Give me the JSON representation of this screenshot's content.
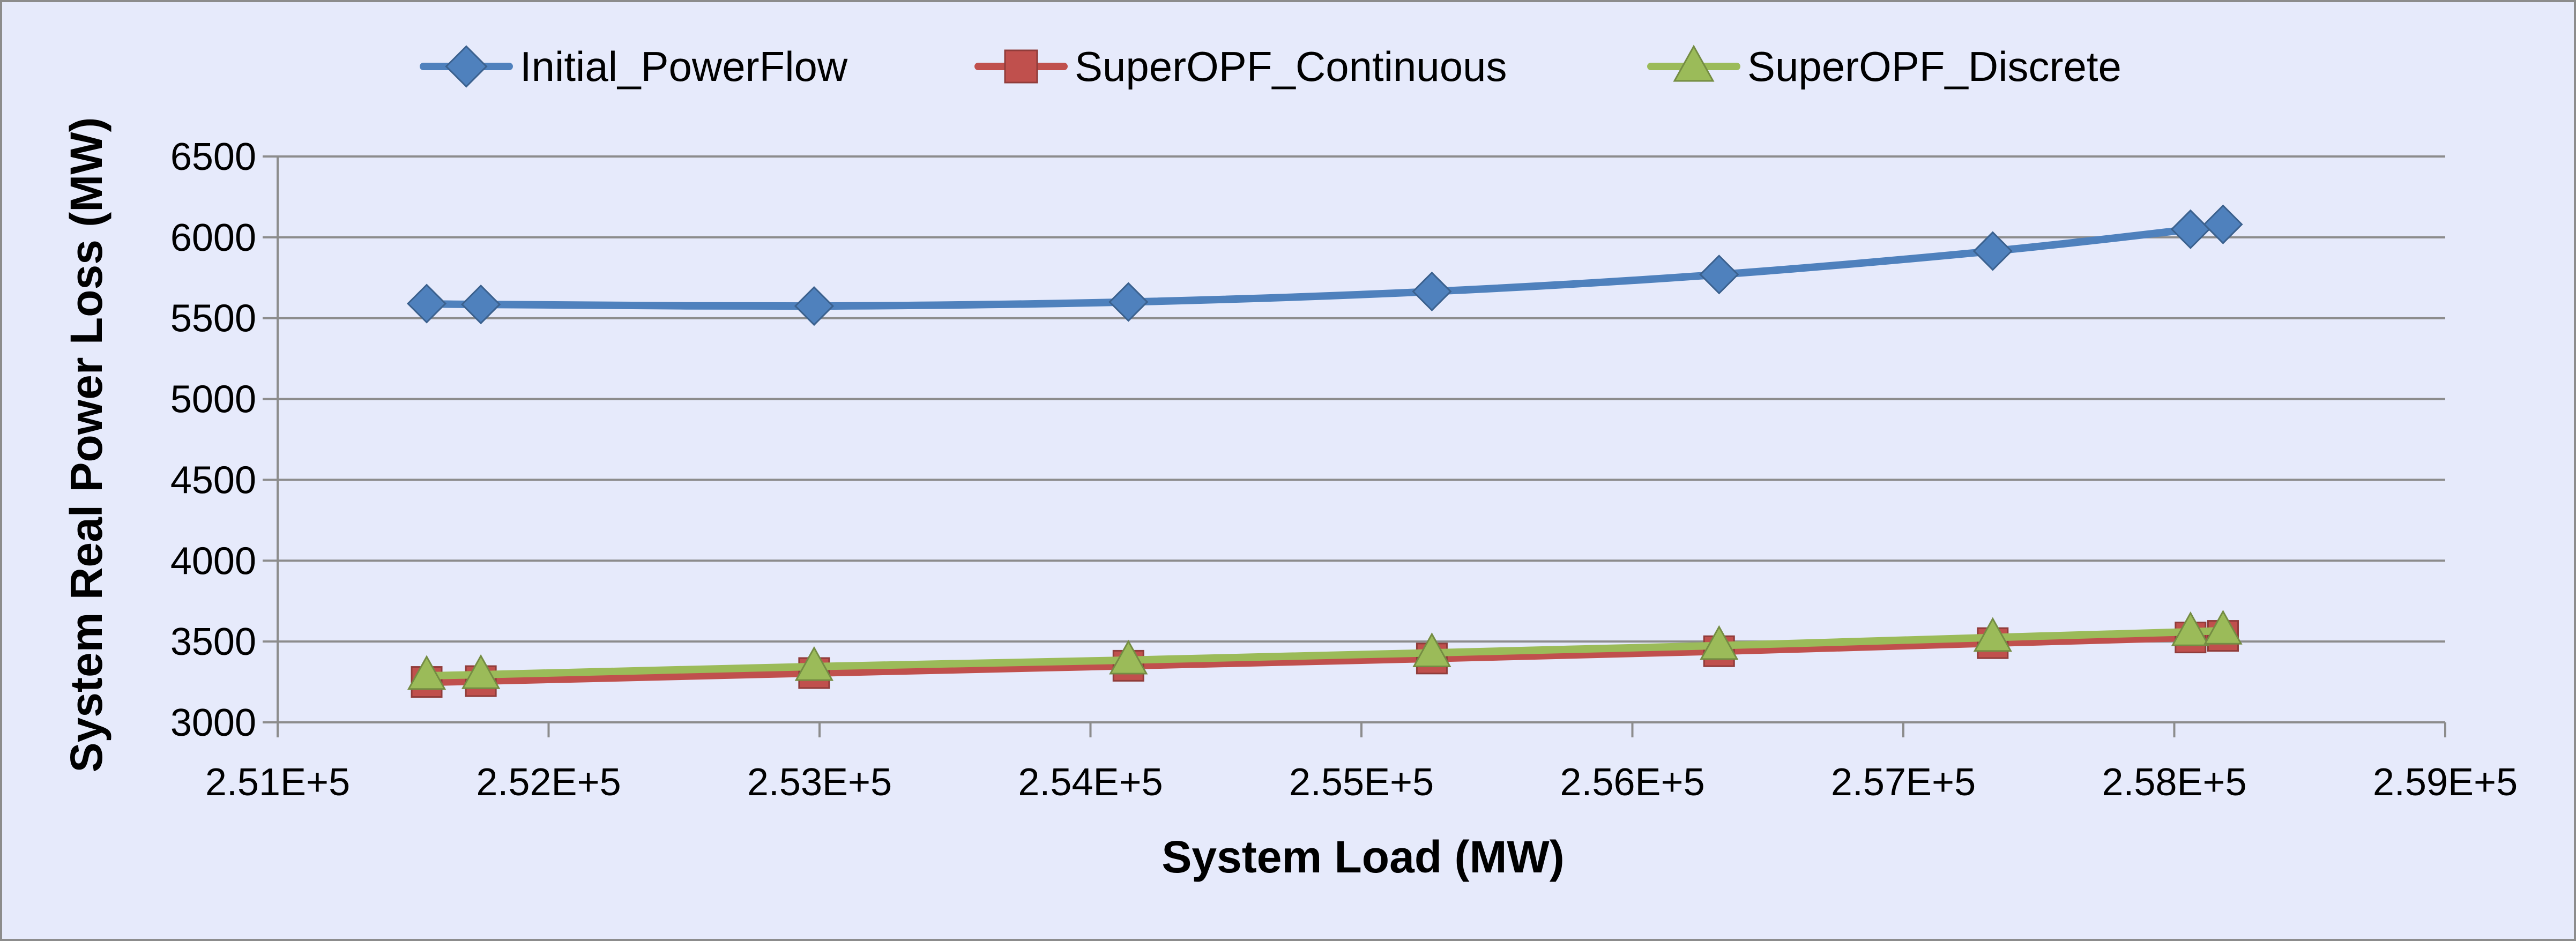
{
  "chart_data": {
    "type": "line",
    "title": "",
    "xlabel": "System Load (MW)",
    "ylabel": "System Real Power Loss (MW)",
    "xlim": [
      251000,
      259000
    ],
    "ylim": [
      3000,
      6500
    ],
    "x_ticks": [
      {
        "value": 251000,
        "label": "2.51E+5"
      },
      {
        "value": 252000,
        "label": "2.52E+5"
      },
      {
        "value": 253000,
        "label": "2.53E+5"
      },
      {
        "value": 254000,
        "label": "2.54E+5"
      },
      {
        "value": 255000,
        "label": "2.55E+5"
      },
      {
        "value": 256000,
        "label": "2.56E+5"
      },
      {
        "value": 257000,
        "label": "2.57E+5"
      },
      {
        "value": 258000,
        "label": "2.58E+5"
      },
      {
        "value": 259000,
        "label": "2.59E+5"
      }
    ],
    "y_ticks": [
      {
        "value": 3000,
        "label": "3000"
      },
      {
        "value": 3500,
        "label": "3500"
      },
      {
        "value": 4000,
        "label": "4000"
      },
      {
        "value": 4500,
        "label": "4500"
      },
      {
        "value": 5000,
        "label": "5000"
      },
      {
        "value": 5500,
        "label": "5500"
      },
      {
        "value": 6000,
        "label": "6000"
      },
      {
        "value": 6500,
        "label": "6500"
      }
    ],
    "grid": {
      "horizontal": true,
      "vertical": false
    },
    "legend": "top",
    "x": [
      251550,
      251750,
      252980,
      254140,
      255260,
      256320,
      257330,
      258060,
      258180
    ],
    "series": [
      {
        "name": "Initial_PowerFlow",
        "marker": "diamond",
        "color": "#4f81bd",
        "values": [
          5590,
          5585,
          5575,
          5600,
          5665,
          5770,
          5915,
          6050,
          6080
        ]
      },
      {
        "name": "SuperOPF_Continuous",
        "marker": "square",
        "color": "#c0504d",
        "values": [
          3250,
          3255,
          3305,
          3350,
          3395,
          3440,
          3490,
          3525,
          3535
        ]
      },
      {
        "name": "SuperOPF_Discrete",
        "marker": "triangle",
        "color": "#9bbb59",
        "values": [
          3290,
          3295,
          3345,
          3385,
          3430,
          3475,
          3525,
          3560,
          3570
        ]
      }
    ]
  }
}
